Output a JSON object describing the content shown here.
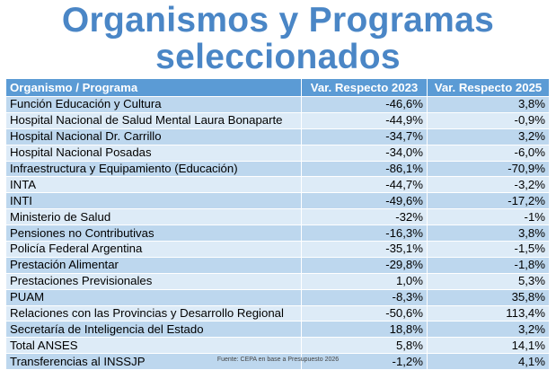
{
  "title_line1": "Organismos y Programas",
  "title_line2": "seleccionados",
  "headers": [
    "Organismo / Programa",
    "Var. Respecto 2023",
    "Var. Respecto 2025"
  ],
  "rows": [
    [
      "Función Educación y Cultura",
      "-46,6%",
      "3,8%"
    ],
    [
      "Hospital Nacional de Salud Mental Laura Bonaparte",
      "-44,9%",
      "-0,9%"
    ],
    [
      "Hospital Nacional Dr. Carrillo",
      "-34,7%",
      "3,2%"
    ],
    [
      "Hospital Nacional Posadas",
      "-34,0%",
      "-6,0%"
    ],
    [
      "Infraestructura y Equipamiento (Educación)",
      "-86,1%",
      "-70,9%"
    ],
    [
      "INTA",
      "-44,7%",
      "-3,2%"
    ],
    [
      "INTI",
      "-49,6%",
      "-17,2%"
    ],
    [
      "Ministerio de Salud",
      "-32%",
      "-1%"
    ],
    [
      "Pensiones no Contributivas",
      "-16,3%",
      "3,8%"
    ],
    [
      "Policía Federal Argentina",
      "-35,1%",
      "-1,5%"
    ],
    [
      "Prestación Alimentar",
      "-29,8%",
      "-1,8%"
    ],
    [
      "Prestaciones Previsionales",
      "1,0%",
      "5,3%"
    ],
    [
      "PUAM",
      "-8,3%",
      "35,8%"
    ],
    [
      "Relaciones con las Provincias y Desarrollo Regional",
      "-50,6%",
      "113,4%"
    ],
    [
      "Secretaría de Inteligencia del Estado",
      "18,8%",
      "3,2%"
    ],
    [
      "Total ANSES",
      "5,8%",
      "14,1%"
    ],
    [
      "Transferencias al INSSJP",
      "-1,2%",
      "4,1%"
    ]
  ],
  "source": "Fuente: CEPA en base a Presupuesto 2026",
  "colors": {
    "title": "#4a86c6",
    "header": "#5b9bd5",
    "row_odd": "#bdd7ee",
    "row_even": "#ddebf7"
  }
}
